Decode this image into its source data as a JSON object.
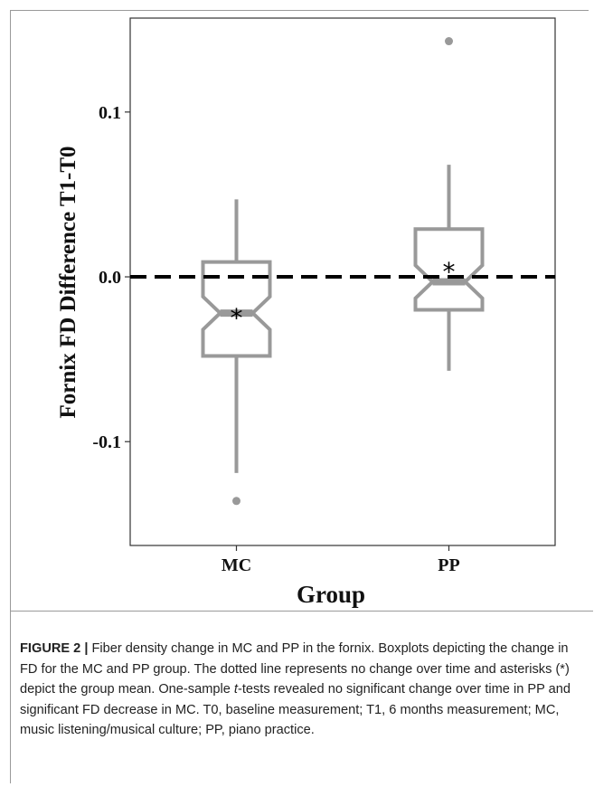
{
  "chart_data": {
    "type": "boxplot",
    "xlabel": "Group",
    "ylabel": "Fornix FD Difference T1-T0",
    "ylim": [
      -0.163,
      0.157
    ],
    "yticks": [
      {
        "value": 0.1,
        "label": "0.1"
      },
      {
        "value": 0.0,
        "label": "0.0"
      },
      {
        "value": -0.1,
        "label": "-0.1"
      }
    ],
    "reference_line": {
      "value": 0.0,
      "style": "dashed"
    },
    "notched": true,
    "mean_marker": "*",
    "box_color": "#999999",
    "groups": [
      {
        "name": "MC",
        "whisker_low": -0.119,
        "q1": -0.048,
        "median": -0.022,
        "q3": 0.009,
        "whisker_high": 0.047,
        "notch_low": -0.032,
        "notch_high": -0.012,
        "mean": -0.023,
        "outliers": [
          -0.136
        ]
      },
      {
        "name": "PP",
        "whisker_low": -0.057,
        "q1": -0.02,
        "median": -0.003,
        "q3": 0.029,
        "whisker_high": 0.068,
        "notch_low": -0.013,
        "notch_high": 0.007,
        "mean": 0.005,
        "outliers": [
          0.143
        ]
      }
    ]
  },
  "caption": {
    "label": "FIGURE 2 |",
    "text_1": " Fiber density change in MC and PP in the fornix. Boxplots depicting the change in FD for the MC and PP group. The dotted line represents no change over time and asterisks (*) depict the group mean. One-sample ",
    "italic": "t",
    "text_2": "-tests revealed no significant change over time in PP and significant FD decrease in MC. T0, baseline measurement; T1, 6 months measurement; MC, music listening/musical culture; PP, piano practice."
  }
}
